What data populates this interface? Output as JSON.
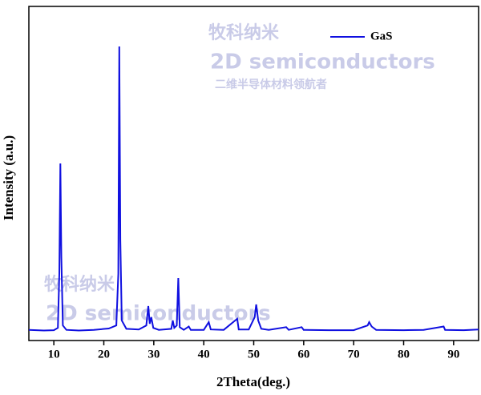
{
  "chart_data": {
    "type": "line",
    "x_label": "2Theta(deg.)",
    "y_label": "Intensity (a.u.)",
    "xlim": [
      5,
      95
    ],
    "xticks": [
      10,
      20,
      30,
      40,
      50,
      60,
      70,
      80,
      90
    ],
    "ylim": [
      0,
      100
    ],
    "legend": "top-right",
    "watermarks": [
      "牧科纳米",
      "2D semiconductors",
      "二维半导体材料领航者",
      "牧科纳米",
      "2D semiconductors"
    ],
    "series": [
      {
        "name": "GaS",
        "color": "#1010e0",
        "x": [
          5,
          8,
          10,
          10.8,
          11.1,
          11.3,
          11.5,
          11.8,
          12.5,
          15,
          18,
          21,
          22.5,
          22.9,
          23.1,
          23.3,
          23.6,
          24.5,
          27,
          28.5,
          28.9,
          29.2,
          29.5,
          29.9,
          31,
          33.5,
          33.8,
          34.1,
          34.6,
          34.9,
          35.2,
          36,
          37,
          37.4,
          40,
          41,
          41.4,
          44,
          46.7,
          47,
          49,
          50.2,
          50.5,
          50.9,
          51.5,
          53,
          56.5,
          57,
          59.6,
          60,
          65,
          70,
          72.8,
          73.1,
          73.6,
          74.5,
          80,
          84,
          88,
          88.3,
          92,
          95
        ],
        "values": [
          3.2,
          3.0,
          3.1,
          3.8,
          20,
          53,
          25,
          4.5,
          3.2,
          3.0,
          3.2,
          3.6,
          4.5,
          20,
          88,
          30,
          6,
          3.5,
          3.3,
          4.5,
          10.3,
          5,
          7,
          3.8,
          3.2,
          3.5,
          6,
          3.8,
          4.5,
          18.7,
          4,
          3.2,
          4.2,
          3.2,
          3.2,
          5.5,
          3.3,
          3.2,
          6.5,
          3.3,
          3.3,
          7,
          10.8,
          6,
          3.5,
          3.2,
          4,
          3.2,
          4,
          3.2,
          3.1,
          3.1,
          4.5,
          5.5,
          4.2,
          3.2,
          3.1,
          3.2,
          4.2,
          3.2,
          3.1,
          3.3
        ]
      }
    ]
  }
}
